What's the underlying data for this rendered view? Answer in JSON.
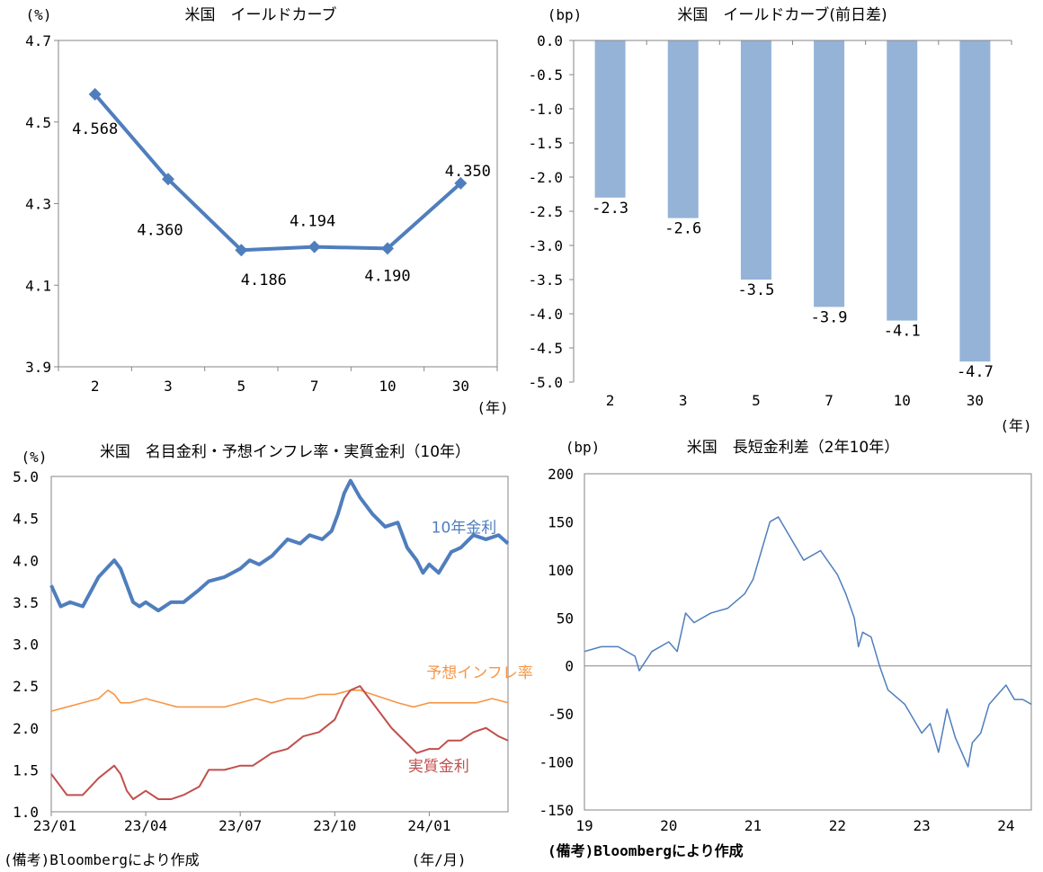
{
  "colors": {
    "line_blue": "#4f7ebd",
    "bar_blue": "#95b3d7",
    "orange": "#f79646",
    "red": "#c0504d",
    "axis": "#868686"
  },
  "chart_data": [
    {
      "id": "c1",
      "type": "line",
      "title": "米国　イールドカーブ",
      "ylabel": "(%)",
      "xlabel": "(年)",
      "categories": [
        "2",
        "3",
        "5",
        "7",
        "10",
        "30"
      ],
      "values": [
        4.568,
        4.36,
        4.186,
        4.194,
        4.19,
        4.35
      ],
      "labels": [
        "4.568",
        "4.360",
        "4.186",
        "4.194",
        "4.190",
        "4.350"
      ],
      "ylim": [
        3.9,
        4.7
      ],
      "yticks": [
        {
          "v": 3.9,
          "t": "3.9"
        },
        {
          "v": 4.1,
          "t": "4.1"
        },
        {
          "v": 4.3,
          "t": "4.3"
        },
        {
          "v": 4.5,
          "t": "4.5"
        },
        {
          "v": 4.7,
          "t": "4.7"
        }
      ],
      "marker": "diamond"
    },
    {
      "id": "c2",
      "type": "bar",
      "title": "米国　イールドカーブ(前日差)",
      "ylabel": "(bp)",
      "xlabel": "(年)",
      "categories": [
        "2",
        "3",
        "5",
        "7",
        "10",
        "30"
      ],
      "values": [
        -2.3,
        -2.6,
        -3.5,
        -3.9,
        -4.1,
        -4.7
      ],
      "labels": [
        "-2.3",
        "-2.6",
        "-3.5",
        "-3.9",
        "-4.1",
        "-4.7"
      ],
      "ylim": [
        -5.0,
        0.0
      ],
      "yticks": [
        {
          "v": 0,
          "t": "0.0"
        },
        {
          "v": -0.5,
          "t": "-0.5"
        },
        {
          "v": -1,
          "t": "-1.0"
        },
        {
          "v": -1.5,
          "t": "-1.5"
        },
        {
          "v": -2,
          "t": "-2.0"
        },
        {
          "v": -2.5,
          "t": "-2.5"
        },
        {
          "v": -3,
          "t": "-3.0"
        },
        {
          "v": -3.5,
          "t": "-3.5"
        },
        {
          "v": -4,
          "t": "-4.0"
        },
        {
          "v": -4.5,
          "t": "-4.5"
        },
        {
          "v": -5,
          "t": "-5.0"
        }
      ]
    },
    {
      "id": "c3",
      "type": "line",
      "title": "米国　名目金利・予想インフレ率・実質金利（10年）",
      "ylabel": "(%)",
      "xlabel": "(年/月)",
      "source": "(備考)Bloombergにより作成",
      "xlim": [
        0,
        14.5
      ],
      "xticks": [
        {
          "v": 0,
          "t": "23/01"
        },
        {
          "v": 3,
          "t": "23/04"
        },
        {
          "v": 6,
          "t": "23/07"
        },
        {
          "v": 9,
          "t": "23/10"
        },
        {
          "v": 12,
          "t": "24/01"
        }
      ],
      "ylim": [
        1.0,
        5.0
      ],
      "yticks": [
        {
          "v": 1,
          "t": "1.0"
        },
        {
          "v": 1.5,
          "t": "1.5"
        },
        {
          "v": 2,
          "t": "2.0"
        },
        {
          "v": 2.5,
          "t": "2.5"
        },
        {
          "v": 3,
          "t": "3.0"
        },
        {
          "v": 3.5,
          "t": "3.5"
        },
        {
          "v": 4,
          "t": "4.0"
        },
        {
          "v": 4.5,
          "t": "4.5"
        },
        {
          "v": 5,
          "t": "5.0"
        }
      ],
      "series": [
        {
          "name": "10年金利",
          "color": "#4f7ebd",
          "width": 4,
          "x": [
            0,
            0.3,
            0.6,
            1.0,
            1.5,
            2.0,
            2.2,
            2.4,
            2.5,
            2.6,
            2.8,
            3.0,
            3.2,
            3.4,
            3.6,
            3.8,
            4.2,
            4.7,
            5.0,
            5.5,
            6.0,
            6.3,
            6.6,
            7.0,
            7.5,
            7.9,
            8.2,
            8.6,
            8.9,
            9.1,
            9.3,
            9.5,
            9.8,
            10.2,
            10.6,
            11.0,
            11.3,
            11.6,
            11.8,
            12.0,
            12.3,
            12.7,
            13.0,
            13.4,
            13.8,
            14.2,
            14.5
          ],
          "y": [
            3.7,
            3.45,
            3.5,
            3.45,
            3.8,
            4.0,
            3.9,
            3.7,
            3.6,
            3.5,
            3.45,
            3.5,
            3.45,
            3.4,
            3.45,
            3.5,
            3.5,
            3.65,
            3.75,
            3.8,
            3.9,
            4.0,
            3.95,
            4.05,
            4.25,
            4.2,
            4.3,
            4.25,
            4.35,
            4.55,
            4.8,
            4.95,
            4.75,
            4.55,
            4.4,
            4.45,
            4.15,
            4.0,
            3.85,
            3.95,
            3.85,
            4.1,
            4.15,
            4.3,
            4.25,
            4.3,
            4.2
          ]
        },
        {
          "name": "予想インフレ率",
          "color": "#f79646",
          "width": 1.6,
          "x": [
            0,
            0.5,
            1.0,
            1.5,
            1.8,
            2.0,
            2.2,
            2.5,
            3.0,
            3.5,
            4.0,
            4.5,
            5.0,
            5.5,
            6.0,
            6.5,
            7.0,
            7.5,
            8.0,
            8.5,
            9.0,
            9.5,
            9.8,
            10.2,
            10.6,
            11.0,
            11.5,
            12.0,
            12.5,
            13.0,
            13.5,
            14.0,
            14.5
          ],
          "y": [
            2.2,
            2.25,
            2.3,
            2.35,
            2.45,
            2.4,
            2.3,
            2.3,
            2.35,
            2.3,
            2.25,
            2.25,
            2.25,
            2.25,
            2.3,
            2.35,
            2.3,
            2.35,
            2.35,
            2.4,
            2.4,
            2.45,
            2.45,
            2.4,
            2.35,
            2.3,
            2.25,
            2.3,
            2.3,
            2.3,
            2.3,
            2.35,
            2.3
          ]
        },
        {
          "name": "実質金利",
          "color": "#c0504d",
          "width": 2,
          "x": [
            0,
            0.5,
            1.0,
            1.5,
            2.0,
            2.2,
            2.4,
            2.6,
            3.0,
            3.4,
            3.8,
            4.2,
            4.7,
            5.0,
            5.5,
            6.0,
            6.4,
            7.0,
            7.5,
            8.0,
            8.5,
            9.0,
            9.3,
            9.5,
            9.8,
            10.1,
            10.5,
            10.8,
            11.2,
            11.6,
            12.0,
            12.3,
            12.6,
            13.0,
            13.4,
            13.8,
            14.2,
            14.5
          ],
          "y": [
            1.45,
            1.2,
            1.2,
            1.4,
            1.55,
            1.45,
            1.25,
            1.15,
            1.25,
            1.15,
            1.15,
            1.2,
            1.3,
            1.5,
            1.5,
            1.55,
            1.55,
            1.7,
            1.75,
            1.9,
            1.95,
            2.1,
            2.35,
            2.45,
            2.5,
            2.35,
            2.15,
            2.0,
            1.85,
            1.7,
            1.75,
            1.75,
            1.85,
            1.85,
            1.95,
            2.0,
            1.9,
            1.85
          ]
        }
      ],
      "series_labels": [
        {
          "name": "10年金利",
          "x": 13.1,
          "y": 4.33
        },
        {
          "name": "予想インフレ率",
          "x": 13.6,
          "y": 2.6
        },
        {
          "name": "実質金利",
          "x": 12.3,
          "y": 1.48
        }
      ]
    },
    {
      "id": "c4",
      "type": "line",
      "title": "米国　長短金利差（2年10年）",
      "ylabel": "(bp)",
      "source": "(備考)Bloombergにより作成",
      "xlim": [
        19,
        24.3
      ],
      "xticks": [
        {
          "v": 19,
          "t": "19"
        },
        {
          "v": 20,
          "t": "20"
        },
        {
          "v": 21,
          "t": "21"
        },
        {
          "v": 22,
          "t": "22"
        },
        {
          "v": 23,
          "t": "23"
        },
        {
          "v": 24,
          "t": "24"
        }
      ],
      "ylim": [
        -150,
        200
      ],
      "yticks": [
        {
          "v": -150,
          "t": "-150"
        },
        {
          "v": -100,
          "t": "-100"
        },
        {
          "v": -50,
          "t": "-50"
        },
        {
          "v": 0,
          "t": "0"
        },
        {
          "v": 50,
          "t": "50"
        },
        {
          "v": 100,
          "t": "100"
        },
        {
          "v": 150,
          "t": "150"
        },
        {
          "v": 200,
          "t": "200"
        }
      ],
      "series": [
        {
          "name": "長短金利差",
          "color": "#4f7ebd",
          "width": 1.5,
          "x": [
            19.0,
            19.2,
            19.4,
            19.6,
            19.65,
            19.8,
            20.0,
            20.1,
            20.2,
            20.3,
            20.5,
            20.7,
            20.9,
            21.0,
            21.1,
            21.2,
            21.3,
            21.4,
            21.6,
            21.8,
            22.0,
            22.1,
            22.2,
            22.25,
            22.3,
            22.4,
            22.5,
            22.6,
            22.8,
            23.0,
            23.1,
            23.2,
            23.3,
            23.4,
            23.5,
            23.55,
            23.6,
            23.7,
            23.8,
            23.9,
            24.0,
            24.1,
            24.2,
            24.3
          ],
          "y": [
            15,
            20,
            20,
            10,
            -5,
            15,
            25,
            15,
            55,
            45,
            55,
            60,
            75,
            90,
            120,
            150,
            155,
            140,
            110,
            120,
            95,
            75,
            50,
            20,
            35,
            30,
            0,
            -25,
            -40,
            -70,
            -60,
            -90,
            -45,
            -75,
            -95,
            -105,
            -80,
            -70,
            -40,
            -30,
            -20,
            -35,
            -35,
            -40
          ]
        }
      ],
      "zero_line": 0
    }
  ]
}
